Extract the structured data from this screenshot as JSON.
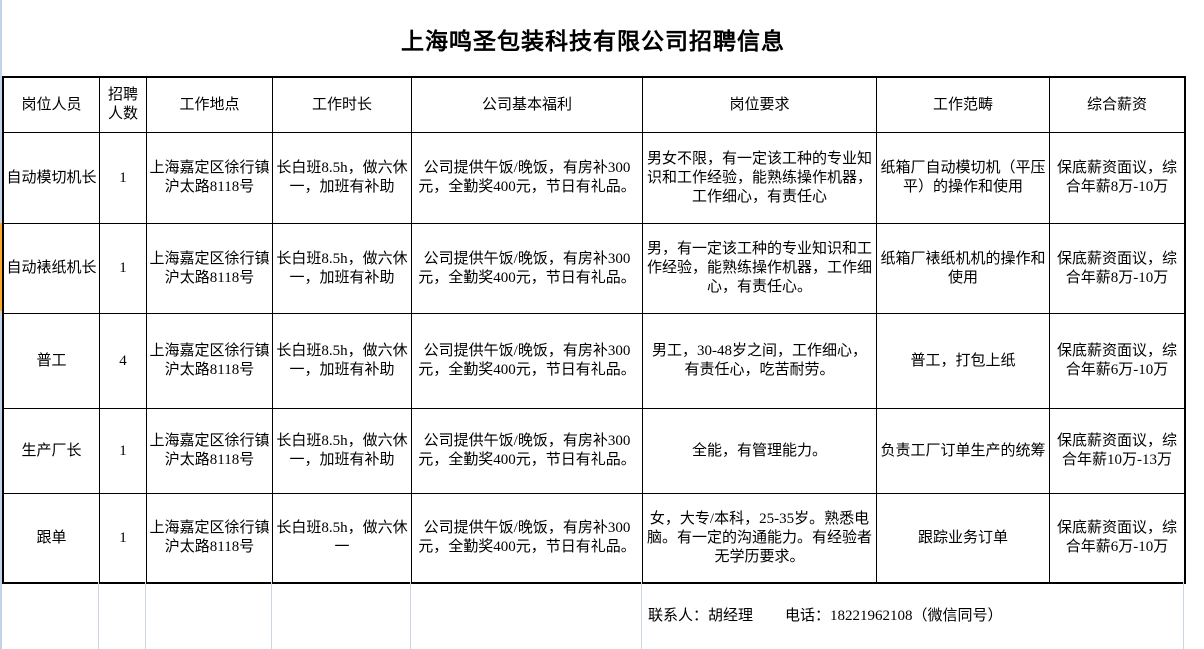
{
  "title": "上海鸣圣包装科技有限公司招聘信息",
  "table": {
    "headers": [
      "岗位人员",
      "招聘人数",
      "工作地点",
      "工作时长",
      "公司基本福利",
      "岗位要求",
      "工作范畴",
      "综合薪资"
    ],
    "rows": [
      [
        "自动模切机长",
        "1",
        "上海嘉定区徐行镇沪太路8118号",
        "长白班8.5h，做六休一，加班有补助",
        "公司提供午饭/晚饭，有房补300元，全勤奖400元，节日有礼品。",
        "男女不限，有一定该工种的专业知识和工作经验，能熟练操作机器，工作细心，有责任心",
        "纸箱厂自动模切机（平压平）的操作和使用",
        "保底薪资面议，综合年薪8万-10万"
      ],
      [
        "自动裱纸机长",
        "1",
        "上海嘉定区徐行镇沪太路8118号",
        "长白班8.5h，做六休一，加班有补助",
        "公司提供午饭/晚饭，有房补300元，全勤奖400元，节日有礼品。",
        "男，有一定该工种的专业知识和工作经验，能熟练操作机器，工作细心，有责任心。",
        "纸箱厂裱纸机机的操作和使用",
        "保底薪资面议，综合年薪8万-10万"
      ],
      [
        "普工",
        "4",
        "上海嘉定区徐行镇沪太路8118号",
        "长白班8.5h，做六休一，加班有补助",
        "公司提供午饭/晚饭，有房补300元，全勤奖400元，节日有礼品。",
        "男工，30-48岁之间，工作细心，有责任心，吃苦耐劳。",
        "普工，打包上纸",
        "保底薪资面议，综合年薪6万-10万"
      ],
      [
        "生产厂长",
        "1",
        "上海嘉定区徐行镇沪太路8118号",
        "长白班8.5h，做六休一，加班有补助",
        "公司提供午饭/晚饭，有房补300元，全勤奖400元，节日有礼品。",
        "全能，有管理能力。",
        "负责工厂订单生产的统筹",
        "保底薪资面议，综合年薪10万-13万"
      ],
      [
        "跟单",
        "1",
        "上海嘉定区徐行镇沪太路8118号",
        "长白班8.5h，做六休一",
        "公司提供午饭/晚饭，有房补300元，全勤奖400元，节日有礼品。",
        "女，大专/本科，25-35岁。熟悉电脑。有一定的沟通能力。有经验者无学历要求。",
        "跟踪业务订单",
        "保底薪资面议，综合年薪6万-10万"
      ]
    ]
  },
  "footer": {
    "contact": "联系人：胡经理",
    "phone": "电话：18221962108（微信同号）"
  }
}
